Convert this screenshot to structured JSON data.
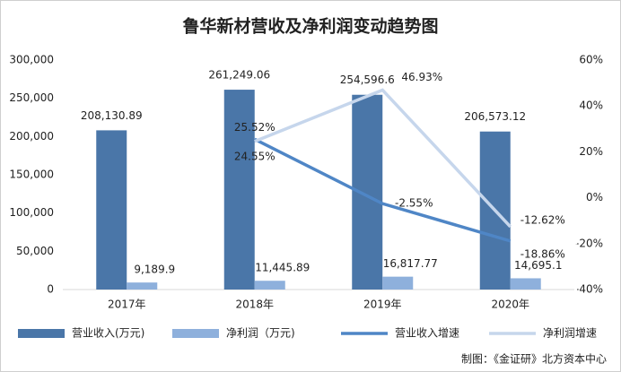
{
  "chart_data": {
    "type": "bar-line",
    "title": "鲁华新材营收及净利润变动趋势图",
    "categories": [
      "2017年",
      "2018年",
      "2019年",
      "2020年"
    ],
    "series": [
      {
        "name": "营业收入(万元)",
        "type": "bar",
        "color": "#4a76a8",
        "values": [
          208130.89,
          261249.06,
          254596.6,
          206573.12
        ],
        "value_labels": [
          "208,130.89",
          "261,249.06",
          "254,596.6",
          "206,573.12"
        ]
      },
      {
        "name": "净利润（万元)",
        "type": "bar",
        "color": "#8eb0dc",
        "values": [
          9189.9,
          11445.89,
          16817.77,
          14695.1
        ],
        "value_labels": [
          "9,189.9",
          "11,445.89",
          "16,817.77",
          "14,695.1"
        ]
      },
      {
        "name": "营业收入增速",
        "type": "line",
        "axis": "y2",
        "color": "#4f86c6",
        "values": [
          null,
          25.52,
          -2.55,
          -18.86
        ],
        "value_labels": [
          null,
          "25.52%",
          "-2.55%",
          "-18.86%"
        ]
      },
      {
        "name": "净利润增速",
        "type": "line",
        "axis": "y2",
        "color": "#c6d6ec",
        "values": [
          null,
          24.55,
          46.93,
          -12.62
        ],
        "value_labels": [
          null,
          "24.55%",
          "46.93%",
          "-12.62%"
        ]
      }
    ],
    "ylim": [
      0,
      300000
    ],
    "yticks": [
      0,
      {
        "value": 50000,
        "label": "50,000"
      },
      {
        "value": 100000,
        "label": "100,000"
      },
      {
        "value": 150000,
        "label": "150,000"
      },
      {
        "value": 200000,
        "label": "200,000"
      },
      {
        "value": 250000,
        "label": "250,000"
      },
      {
        "value": 300000,
        "label": "300,000"
      }
    ],
    "y2lim": [
      -40,
      60
    ],
    "y2ticks": [
      {
        "value": -40,
        "label": "-40%"
      },
      {
        "value": -20,
        "label": "-20%"
      },
      {
        "value": 0,
        "label": "0%"
      },
      {
        "value": 20,
        "label": "20%"
      },
      {
        "value": 40,
        "label": "40%"
      },
      {
        "value": 60,
        "label": "60%"
      }
    ],
    "source": "制图：《金证研》北方资本中心"
  }
}
